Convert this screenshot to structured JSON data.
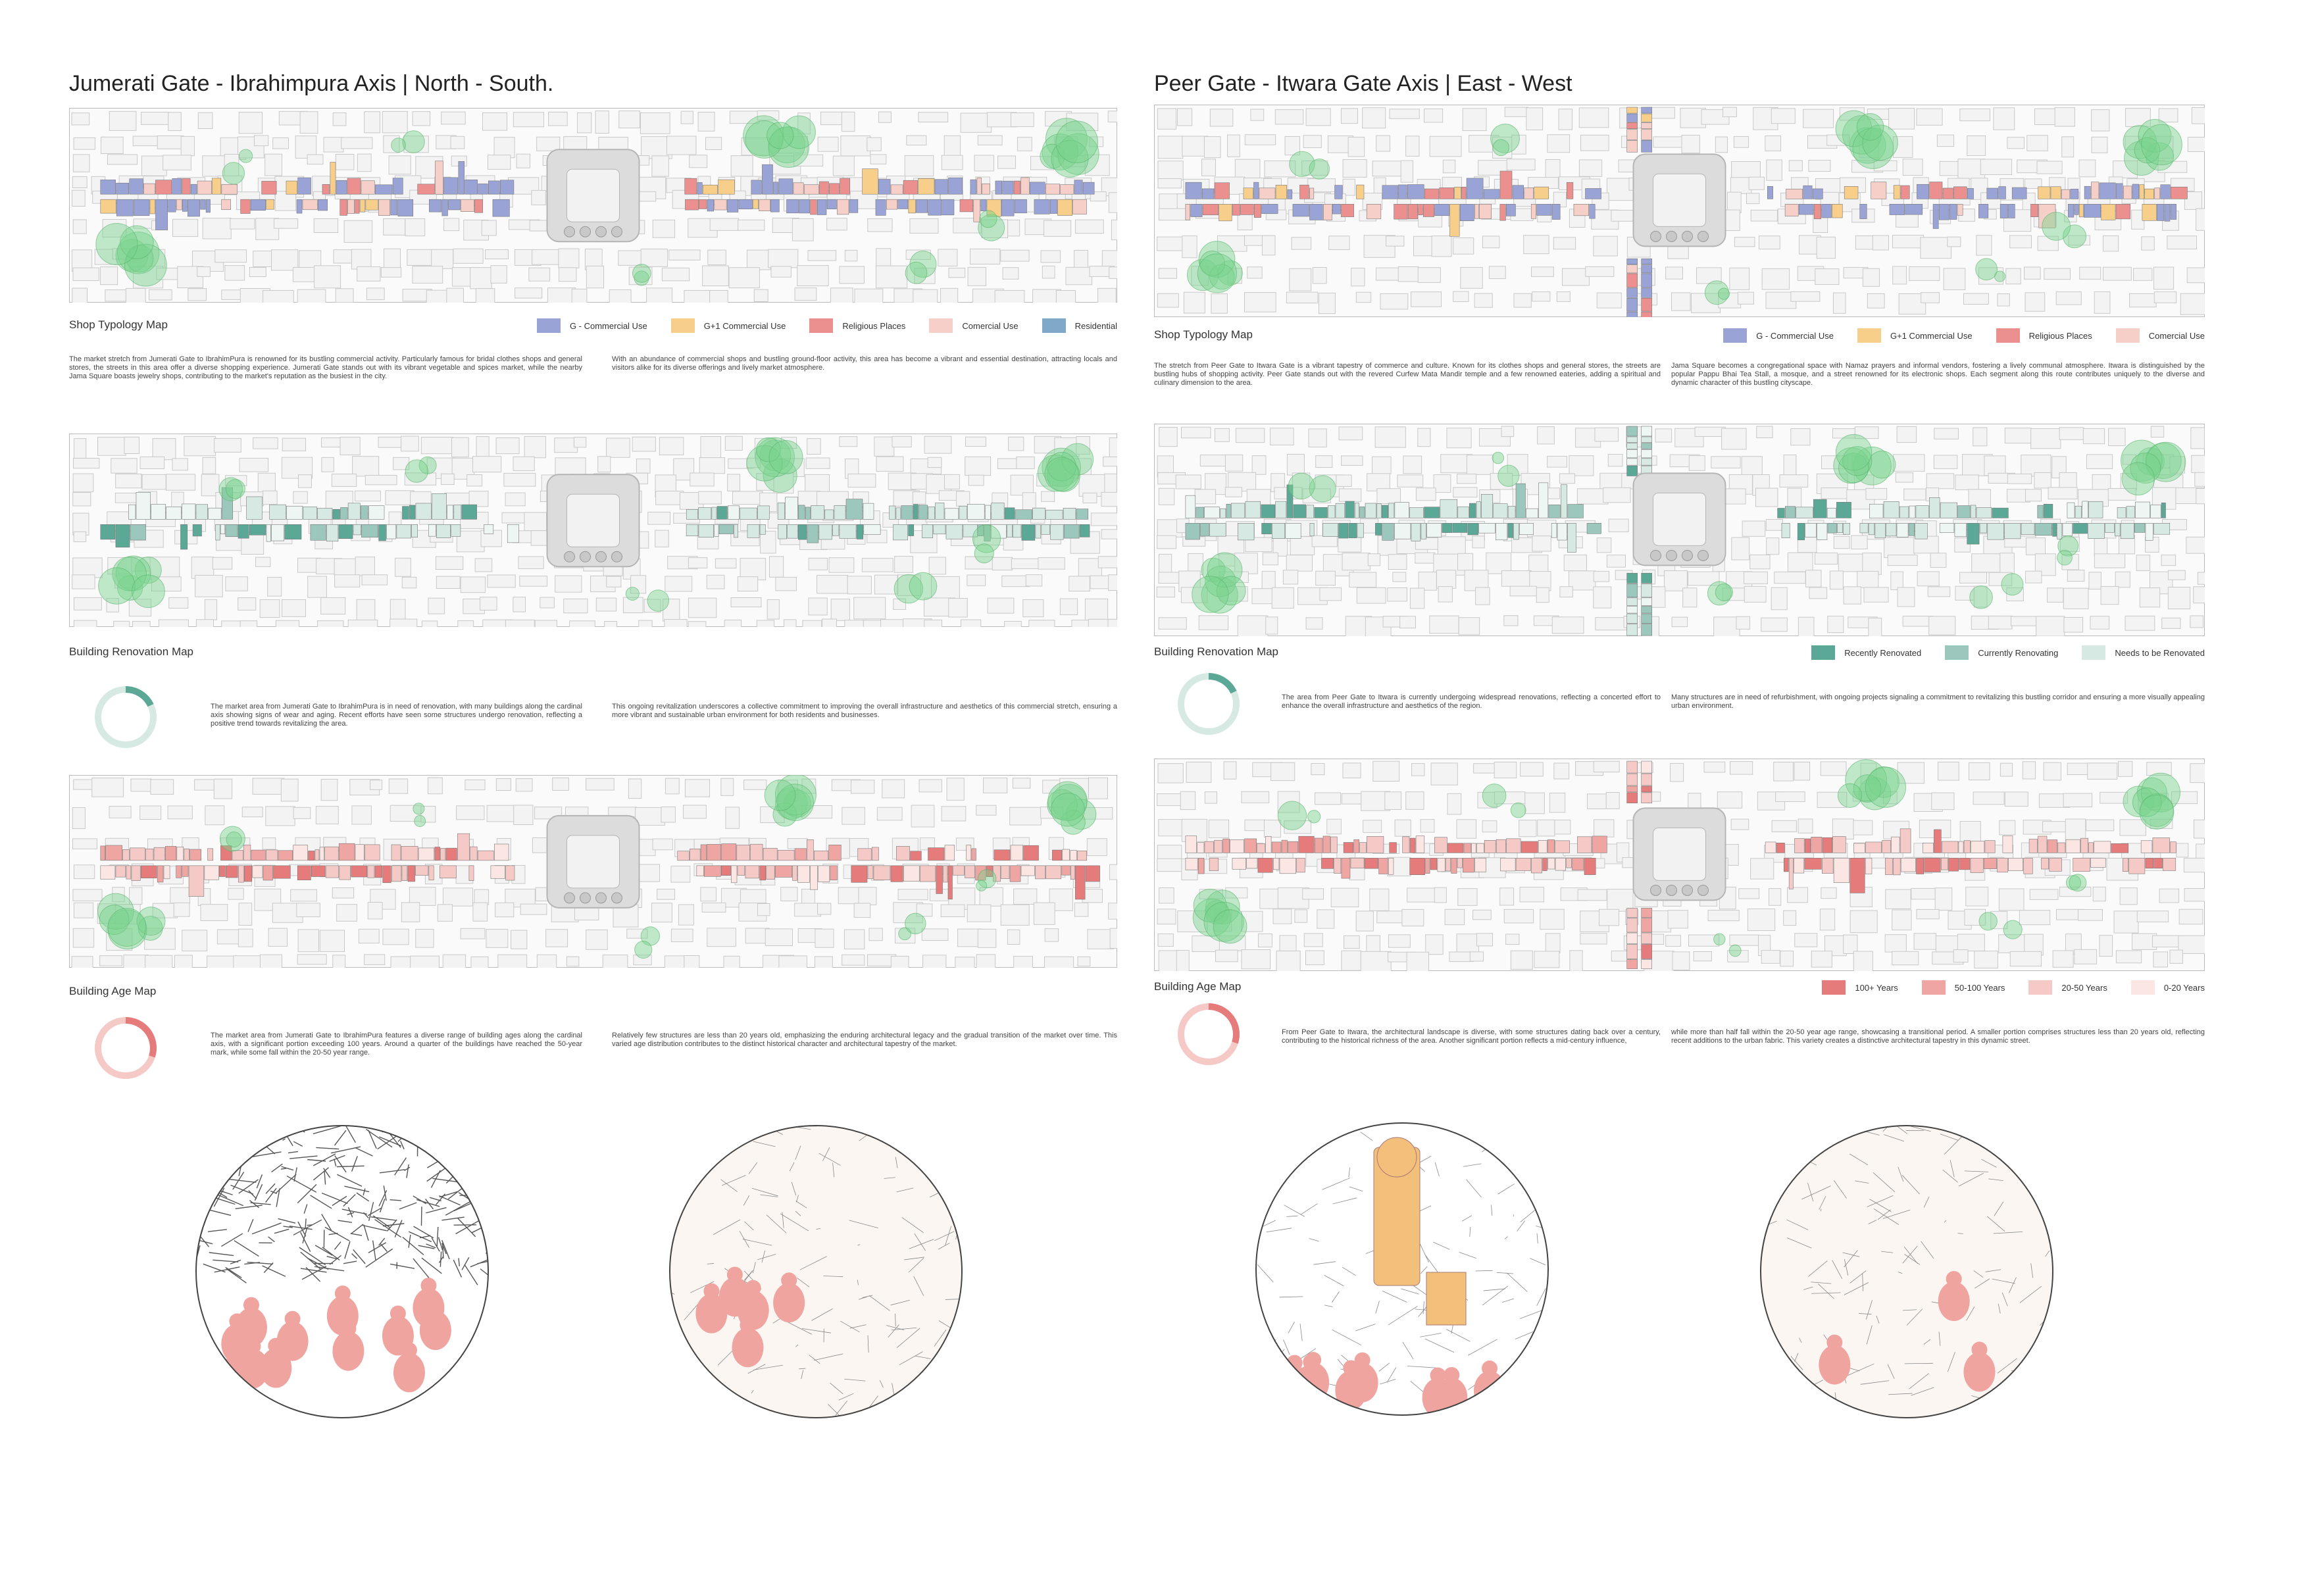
{
  "panels": [
    {
      "title": "Jumerati Gate - Ibrahimpura Axis | North - South.",
      "maps": [
        {
          "label": "Shop Typology Map",
          "legend": [
            {
              "label": "G - Commercial Use",
              "color": "#9aa3d6"
            },
            {
              "label": "G+1 Commercial Use",
              "color": "#f7cf8a"
            },
            {
              "label": "Religious Places",
              "color": "#ec8f8f"
            },
            {
              "label": "Comercial Use",
              "color": "#f6cfc9"
            },
            {
              "label": "Residential",
              "color": "#7fa8c9"
            }
          ],
          "paragraphs": [
            "The market stretch from Jumerati Gate to IbrahimPura is renowned for its bustling commercial activity. Particularly famous for bridal clothes shops and general stores, the streets in this area offer a diverse shopping experience. Jumerati Gate stands out with its vibrant vegetable and spices market, while the nearby Jama Square boasts jewelry shops, contributing to the market's reputation as the busiest in the city.",
            "With an abundance of commercial shops and bustling ground-floor activity, this area has become a vibrant and essential destination, attracting locals and visitors alike for its diverse offerings and lively market atmosphere."
          ]
        },
        {
          "label": "Building Renovation Map",
          "paragraphs": [
            "The market area from Jumerati Gate to IbrahimPura is in need of renovation, with many buildings along the cardinal axis showing signs of wear and aging. Recent efforts have seen some structures undergo renovation, reflecting a positive trend towards revitalizing the area.",
            "This ongoing revitalization underscores a collective commitment to improving the overall infrastructure and aesthetics of this commercial stretch, ensuring a more vibrant and sustainable urban environment for both residents and businesses."
          ]
        },
        {
          "label": "Building Age Map",
          "paragraphs": [
            "The market area from Jumerati Gate to IbrahimPura features a diverse range of building ages along the cardinal axis, with a significant portion exceeding 100 years. Around a quarter of the buildings have reached the 50-year mark, while some fall within the 20-50 year range.",
            "Relatively few structures are less than 20 years old, emphasizing the enduring architectural legacy and the gradual transition of the market over time. This varied age distribution contributes to the distinct historical character and architectural tapestry of the market."
          ]
        }
      ]
    },
    {
      "title": "Peer Gate - Itwara Gate Axis | East - West",
      "maps": [
        {
          "label": "Shop Typology Map",
          "legend": [
            {
              "label": "G - Commercial Use",
              "color": "#9aa3d6"
            },
            {
              "label": "G+1 Commercial Use",
              "color": "#f7cf8a"
            },
            {
              "label": "Religious Places",
              "color": "#ec8f8f"
            },
            {
              "label": "Comercial Use",
              "color": "#f6cfc9"
            }
          ],
          "paragraphs": [
            "The stretch from Peer Gate to Itwara Gate is a vibrant tapestry of commerce and culture. Known for its clothes shops and general stores, the streets are bustling hubs of shopping activity. Peer Gate stands out with the revered Curfew Mata Mandir temple and a few renowned eateries, adding a spiritual and culinary dimension to the area.",
            "Jama Square becomes a congregational space with Namaz prayers and informal vendors, fostering a lively communal atmosphere. Itwara is distinguished by the popular Pappu Bhai Tea Stall, a mosque, and a street renowned for its electronic shops. Each segment along this route contributes uniquely to the diverse and dynamic character of this bustling cityscape."
          ]
        },
        {
          "label": "Building Renovation Map",
          "legend": [
            {
              "label": "Recently Renovated",
              "color": "#5ca897"
            },
            {
              "label": "Currently Renovating",
              "color": "#9cc7bc"
            },
            {
              "label": "Needs to be Renovated",
              "color": "#d6e9e3"
            }
          ],
          "paragraphs": [
            "The area from Peer Gate to Itwara is currently undergoing widespread renovations, reflecting a concerted effort to enhance the overall infrastructure and aesthetics of the region.",
            "Many structures are in need of refurbishment, with ongoing projects signaling a commitment to revitalizing this bustling corridor and ensuring a more visually appealing urban environment."
          ]
        },
        {
          "label": "Building Age Map",
          "legend": [
            {
              "label": "100+ Years",
              "color": "#e57b7b"
            },
            {
              "label": "50-100 Years",
              "color": "#efa5a2"
            },
            {
              "label": "20-50 Years",
              "color": "#f5c9c5"
            },
            {
              "label": "0-20 Years",
              "color": "#fbe6e3"
            }
          ],
          "paragraphs": [
            "From Peer Gate to Itwara, the architectural landscape is diverse, with some structures dating back over a century, contributing to the historical richness of the area. Another significant portion reflects a mid-century influence,",
            "while more than half fall within the 20-50 year age range, showcasing a transitional period. A smaller portion comprises structures less than 20 years old, reflecting recent additions to the urban fabric. This variety creates a distinctive architectural tapestry in this dynamic street."
          ]
        }
      ]
    }
  ]
}
